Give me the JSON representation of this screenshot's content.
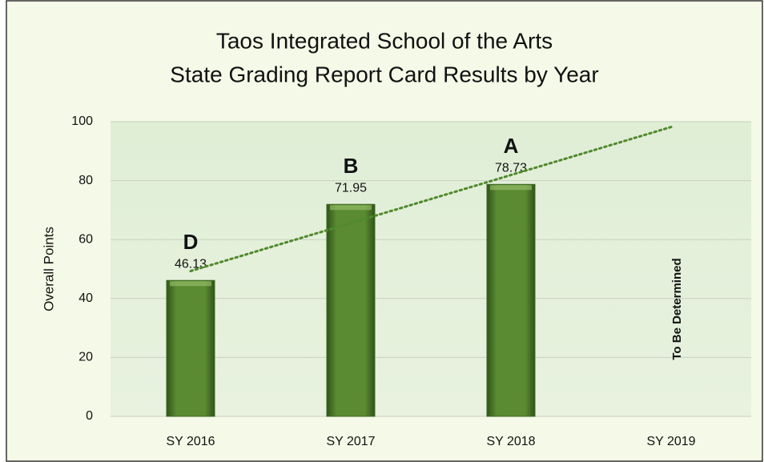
{
  "chart_data": {
    "type": "bar",
    "title": [
      "Taos Integrated School of the Arts",
      "State Grading Report Card Results by Year"
    ],
    "y_label": "Overall Points",
    "categories": [
      "SY 2016",
      "SY 2017",
      "SY 2018",
      "SY 2019"
    ],
    "values": [
      46.13,
      71.95,
      78.73,
      null
    ],
    "grade_labels": [
      "D",
      "B",
      "A"
    ],
    "annotation": "To Be Determined",
    "color": "#5a8a32",
    "trendline": true,
    "trendline_color": "#4f8a2b",
    "ylim": [
      0,
      100
    ],
    "yticks": [
      0,
      20,
      40,
      60,
      80,
      100
    ],
    "grid": true
  }
}
